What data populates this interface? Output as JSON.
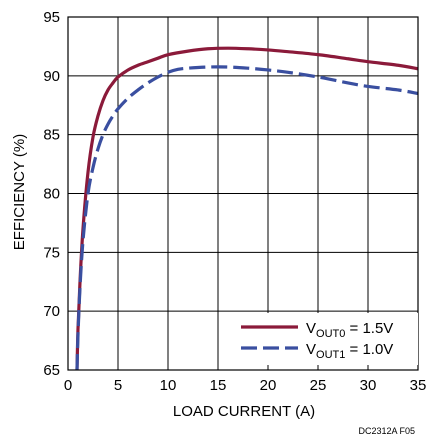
{
  "chart_data": {
    "type": "line",
    "xlabel": "LOAD CURRENT (A)",
    "ylabel": "EFFICIENCY (%)",
    "xlim": [
      0,
      35
    ],
    "ylim": [
      65,
      95
    ],
    "x_ticks": [
      "0",
      "5",
      "10",
      "15",
      "20",
      "25",
      "30",
      "35"
    ],
    "y_ticks": [
      "65",
      "70",
      "75",
      "80",
      "85",
      "90",
      "95"
    ],
    "grid": true,
    "legend_position": "bottom-right",
    "series": [
      {
        "name_main": "V",
        "name_sub": "OUT0",
        "name_rest": " = 1.5V",
        "color": "#8b1a3a",
        "dash": "solid",
        "x": [
          0.9,
          1.0,
          1.2,
          1.5,
          2.0,
          2.5,
          3.0,
          3.5,
          4.0,
          4.5,
          5.0,
          6.0,
          7.0,
          8.0,
          9.0,
          10.0,
          12.0,
          14.0,
          16.0,
          18.0,
          20.0,
          22.0,
          25.0,
          28.0,
          30.0,
          33.0,
          35.0
        ],
        "y": [
          65.0,
          68.5,
          72.5,
          77.0,
          81.8,
          84.8,
          86.6,
          87.9,
          88.8,
          89.4,
          89.9,
          90.5,
          90.9,
          91.2,
          91.5,
          91.8,
          92.1,
          92.3,
          92.35,
          92.3,
          92.2,
          92.05,
          91.8,
          91.45,
          91.2,
          90.9,
          90.6
        ]
      },
      {
        "name_main": "V",
        "name_sub": "OUT1",
        "name_rest": " = 1.0V",
        "color": "#3a4fa0",
        "dash": "dashed",
        "x": [
          0.9,
          1.0,
          1.2,
          1.5,
          2.0,
          2.5,
          3.0,
          3.5,
          4.0,
          4.5,
          5.0,
          6.0,
          7.0,
          8.0,
          9.0,
          10.0,
          11.0,
          12.0,
          14.0,
          16.0,
          18.0,
          20.0,
          22.0,
          25.0,
          28.0,
          30.0,
          33.0,
          35.0
        ],
        "y": [
          65.0,
          68.0,
          72.0,
          76.0,
          80.0,
          82.2,
          83.8,
          85.0,
          85.9,
          86.6,
          87.2,
          88.1,
          88.8,
          89.4,
          89.9,
          90.3,
          90.55,
          90.65,
          90.75,
          90.75,
          90.65,
          90.5,
          90.3,
          89.9,
          89.4,
          89.1,
          88.8,
          88.5
        ]
      }
    ]
  },
  "footer_code": "DC2312A F05"
}
